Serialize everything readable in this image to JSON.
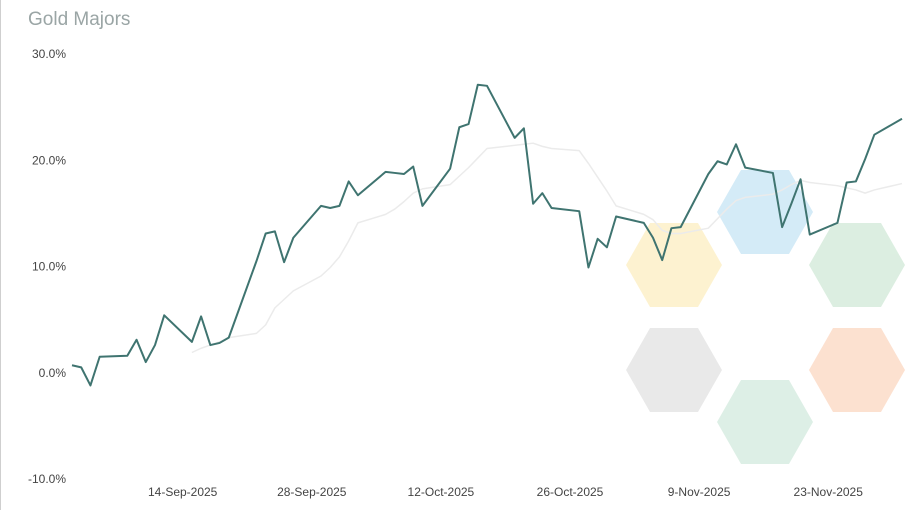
{
  "chart_data": {
    "type": "line",
    "title": "Gold Majors",
    "x": [
      "2025-09-02",
      "2025-09-03",
      "2025-09-04",
      "2025-09-05",
      "2025-09-08",
      "2025-09-09",
      "2025-09-10",
      "2025-09-11",
      "2025-09-12",
      "2025-09-15",
      "2025-09-16",
      "2025-09-17",
      "2025-09-18",
      "2025-09-19",
      "2025-09-22",
      "2025-09-23",
      "2025-09-24",
      "2025-09-25",
      "2025-09-26",
      "2025-09-29",
      "2025-09-30",
      "2025-10-01",
      "2025-10-02",
      "2025-10-03",
      "2025-10-06",
      "2025-10-07",
      "2025-10-08",
      "2025-10-09",
      "2025-10-10",
      "2025-10-13",
      "2025-10-14",
      "2025-10-15",
      "2025-10-16",
      "2025-10-17",
      "2025-10-20",
      "2025-10-21",
      "2025-10-22",
      "2025-10-23",
      "2025-10-24",
      "2025-10-27",
      "2025-10-28",
      "2025-10-29",
      "2025-10-30",
      "2025-10-31",
      "2025-11-03",
      "2025-11-04",
      "2025-11-05",
      "2025-11-06",
      "2025-11-07",
      "2025-11-10",
      "2025-11-11",
      "2025-11-12",
      "2025-11-13",
      "2025-11-14",
      "2025-11-17",
      "2025-11-18",
      "2025-11-19",
      "2025-11-20",
      "2025-11-21",
      "2025-11-24",
      "2025-11-25",
      "2025-11-26",
      "2025-11-27",
      "2025-11-28",
      "2025-12-01"
    ],
    "series": [
      {
        "color": "#ebebeb",
        "values": [
          null,
          null,
          null,
          null,
          null,
          null,
          null,
          null,
          null,
          2.0,
          2.4,
          2.7,
          3.0,
          3.4,
          3.8,
          4.6,
          6.2,
          7.0,
          7.8,
          9.2,
          10.0,
          11.0,
          12.5,
          14.2,
          15.0,
          15.5,
          16.2,
          17.0,
          17.4,
          17.8,
          18.6,
          19.4,
          20.3,
          21.2,
          21.5,
          21.6,
          21.7,
          21.4,
          21.2,
          21.0,
          19.8,
          18.5,
          17.2,
          15.8,
          15.0,
          14.5,
          13.5,
          13.2,
          13.2,
          13.7,
          14.6,
          15.5,
          16.3,
          16.6,
          16.9,
          17.3,
          17.8,
          18.2,
          18.0,
          17.7,
          17.5,
          17.3,
          17.0,
          17.3,
          17.9
        ]
      },
      {
        "color": "#3f7470",
        "values": [
          0.8,
          0.6,
          -1.1,
          1.6,
          1.7,
          3.2,
          1.1,
          2.7,
          5.5,
          3.0,
          5.4,
          2.7,
          2.9,
          3.4,
          10.6,
          13.2,
          13.4,
          10.5,
          12.8,
          15.8,
          15.6,
          15.8,
          18.1,
          16.8,
          19.0,
          18.9,
          18.8,
          19.5,
          15.8,
          19.3,
          23.2,
          23.5,
          27.2,
          27.1,
          22.2,
          23.1,
          16.0,
          17.0,
          15.6,
          15.3,
          10.0,
          12.7,
          11.9,
          14.8,
          14.2,
          12.8,
          10.7,
          13.7,
          13.8,
          18.8,
          20.0,
          19.7,
          21.6,
          19.4,
          18.9,
          13.8,
          16.0,
          18.3,
          13.1,
          14.2,
          18.0,
          18.1,
          20.2,
          22.5,
          24.0
        ]
      }
    ],
    "xlim": [
      "2025-09-02",
      "2025-12-01"
    ],
    "xticks": [
      {
        "value": "2025-09-14",
        "label": "14-Sep-2025"
      },
      {
        "value": "2025-09-28",
        "label": "28-Sep-2025"
      },
      {
        "value": "2025-10-12",
        "label": "12-Oct-2025"
      },
      {
        "value": "2025-10-26",
        "label": "26-Oct-2025"
      },
      {
        "value": "2025-11-09",
        "label": "9-Nov-2025"
      },
      {
        "value": "2025-11-23",
        "label": "23-Nov-2025"
      }
    ],
    "ylim": [
      -10,
      30
    ],
    "yticks": [
      {
        "value": -10,
        "label": "-10.0%"
      },
      {
        "value": 0,
        "label": "0.0%"
      },
      {
        "value": 10,
        "label": "10.0%"
      },
      {
        "value": 20,
        "label": "20.0%"
      },
      {
        "value": 30,
        "label": "30.0%"
      }
    ]
  }
}
